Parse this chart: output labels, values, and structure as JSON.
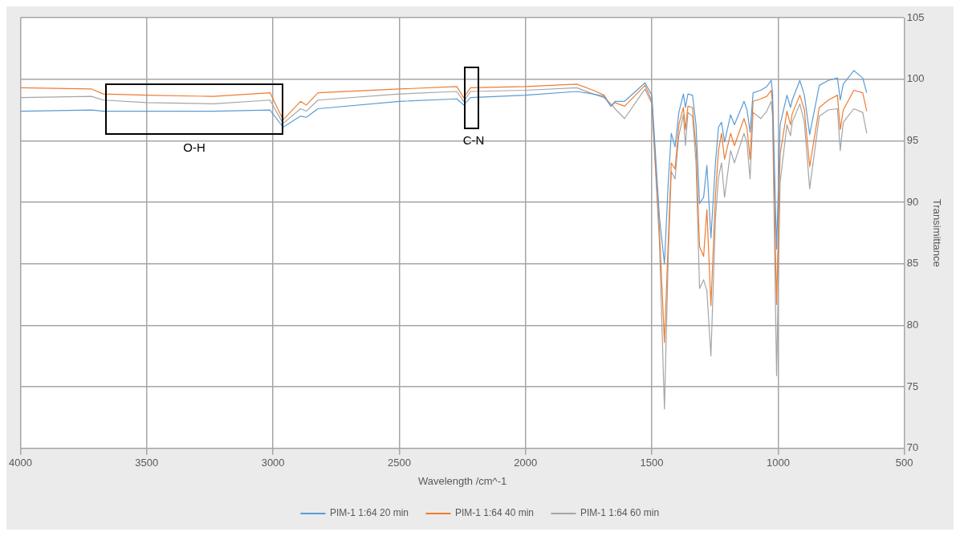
{
  "chart_data": {
    "type": "line",
    "xlabel": "Wavelength /cm^-1",
    "y2label": "Transimittance",
    "x": [
      4000,
      3718,
      3672,
      3500,
      3236,
      3012,
      2960,
      2891,
      2868,
      2822,
      2500,
      2272,
      2245,
      2218,
      2000,
      1797,
      1732,
      1689,
      1662,
      1646,
      1608,
      1527,
      1500,
      1470,
      1450,
      1435,
      1423,
      1408,
      1393,
      1375,
      1367,
      1357,
      1339,
      1325,
      1311,
      1295,
      1282,
      1266,
      1248,
      1236,
      1224,
      1212,
      1188,
      1173,
      1135,
      1123,
      1111,
      1099,
      1069,
      1045,
      1027,
      1022,
      1006,
      992,
      965,
      951,
      944,
      914,
      896,
      875,
      837,
      801,
      765,
      754,
      742,
      700,
      665,
      649
    ],
    "series": [
      {
        "name": "PIM-1 1:64 20 min",
        "color": "#5b9bd5",
        "axis": "y2",
        "values": [
          97.4,
          97.5,
          97.4,
          97.4,
          97.4,
          97.5,
          96.1,
          97.0,
          96.9,
          97.6,
          98.2,
          98.4,
          97.9,
          98.5,
          98.7,
          99.0,
          98.8,
          98.6,
          97.8,
          98.2,
          98.2,
          99.7,
          98.7,
          88.8,
          85.0,
          91.6,
          95.6,
          94.5,
          97.3,
          98.8,
          97.7,
          98.8,
          98.7,
          96.3,
          89.9,
          90.4,
          93.0,
          87.1,
          93.2,
          96.1,
          96.5,
          94.9,
          97.1,
          96.3,
          98.2,
          97.5,
          95.7,
          98.9,
          99.1,
          99.4,
          99.9,
          98.9,
          86.2,
          96.3,
          98.7,
          97.7,
          98.3,
          99.9,
          98.7,
          95.5,
          99.5,
          99.9,
          100.1,
          98.3,
          99.6,
          100.7,
          100.1,
          98.9
        ]
      },
      {
        "name": "PIM-1 1:64 40 min",
        "color": "#ed7d31",
        "axis": "y2",
        "values": [
          99.3,
          99.2,
          98.8,
          98.7,
          98.6,
          98.9,
          96.7,
          98.2,
          97.9,
          98.9,
          99.2,
          99.4,
          98.5,
          99.3,
          99.4,
          99.6,
          99.1,
          98.7,
          97.8,
          98.1,
          97.8,
          99.5,
          98.2,
          87.8,
          78.6,
          86.8,
          93.2,
          92.7,
          96.3,
          97.7,
          95.9,
          97.8,
          97.7,
          94.4,
          86.4,
          85.6,
          89.4,
          81.6,
          90.6,
          94.2,
          95.6,
          93.5,
          95.6,
          94.6,
          96.8,
          96.0,
          93.5,
          98.2,
          98.4,
          98.6,
          99.1,
          98.0,
          81.7,
          93.9,
          97.4,
          96.3,
          97.2,
          98.7,
          97.5,
          92.9,
          97.7,
          98.3,
          98.7,
          95.9,
          97.5,
          99.1,
          98.9,
          97.4
        ]
      },
      {
        "name": "PIM-1 1:64 60 min",
        "color": "#a5a5a5",
        "axis": "y2",
        "values": [
          98.5,
          98.6,
          98.3,
          98.1,
          98.0,
          98.3,
          96.4,
          97.6,
          97.4,
          98.3,
          98.8,
          99.0,
          98.2,
          99.0,
          99.1,
          99.3,
          98.8,
          98.5,
          98.0,
          97.6,
          96.8,
          99.2,
          98.0,
          86.8,
          73.2,
          85.6,
          92.5,
          91.9,
          95.4,
          97.1,
          94.6,
          97.3,
          97.0,
          93.2,
          83.0,
          83.7,
          82.8,
          77.5,
          88.7,
          92.0,
          93.2,
          90.4,
          94.2,
          93.2,
          95.6,
          94.8,
          91.9,
          97.3,
          96.8,
          97.4,
          98.2,
          97.0,
          75.9,
          91.6,
          96.3,
          95.4,
          96.5,
          98.0,
          96.5,
          91.1,
          97.0,
          97.5,
          97.6,
          94.2,
          96.5,
          97.6,
          97.3,
          95.6
        ]
      }
    ],
    "xlim": [
      4000,
      500
    ],
    "xticks": [
      4000,
      3500,
      3000,
      2500,
      2000,
      1500,
      1000,
      500
    ],
    "y2lim": [
      70,
      105
    ],
    "y2ticks": [
      70,
      75,
      80,
      85,
      90,
      95,
      100,
      105
    ],
    "annotations": [
      "O-H",
      "C-N"
    ],
    "grid": true,
    "legend": "bottom",
    "marker": "none",
    "line_style": "solid"
  }
}
